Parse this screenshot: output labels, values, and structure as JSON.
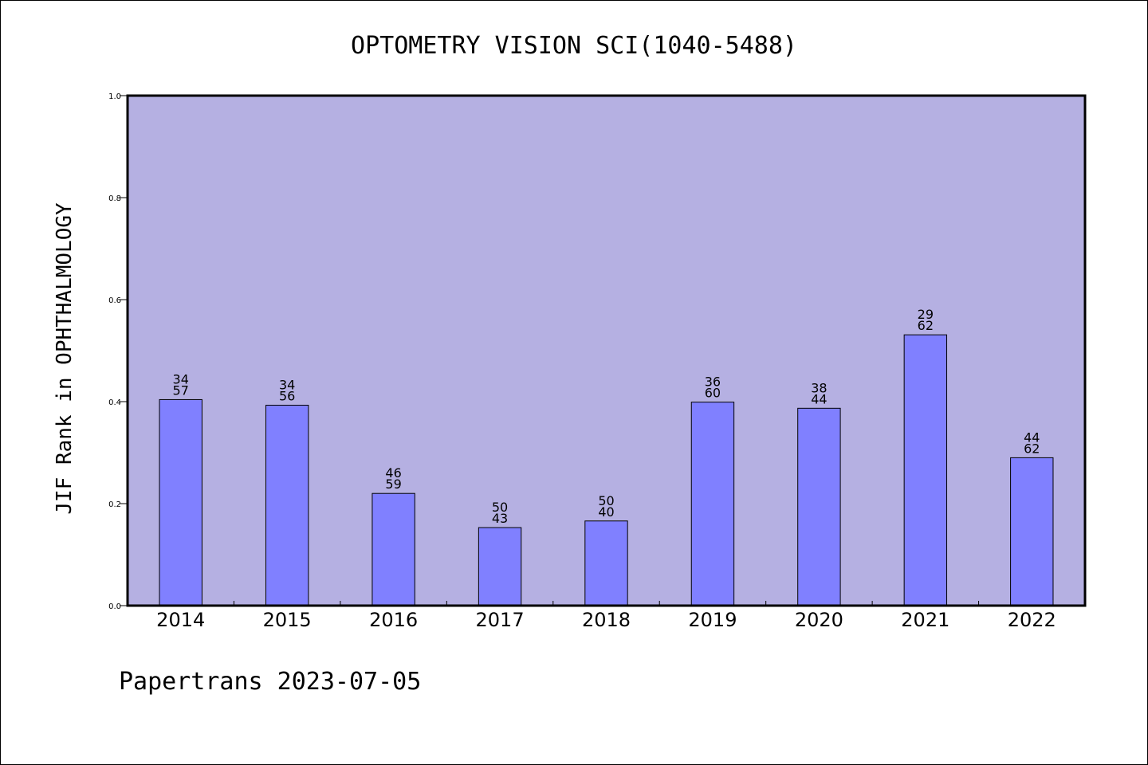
{
  "chart_data": {
    "type": "bar",
    "title": "OPTOMETRY VISION SCI(1040-5488)",
    "ylabel": "JIF Rank in OPHTHALMOLOGY",
    "xlabel": "",
    "categories": [
      "2014",
      "2015",
      "2016",
      "2017",
      "2018",
      "2019",
      "2020",
      "2021",
      "2022"
    ],
    "values": [
      0.404,
      0.393,
      0.22,
      0.153,
      0.166,
      0.399,
      0.387,
      0.531,
      0.29
    ],
    "bar_labels": [
      {
        "top": "34",
        "bottom": "57"
      },
      {
        "top": "34",
        "bottom": "56"
      },
      {
        "top": "46",
        "bottom": "59"
      },
      {
        "top": "50",
        "bottom": "43"
      },
      {
        "top": "50",
        "bottom": "40"
      },
      {
        "top": "36",
        "bottom": "60"
      },
      {
        "top": "38",
        "bottom": "44"
      },
      {
        "top": "29",
        "bottom": "62"
      },
      {
        "top": "44",
        "bottom": "62"
      }
    ],
    "ylim": [
      0.0,
      1.0
    ],
    "yticks": [
      "0.0",
      "0.2",
      "0.4",
      "0.6",
      "0.8",
      "1.0"
    ],
    "grid": false,
    "legend": "none",
    "colors": {
      "plot_background": "#b5b0e2",
      "bar_fill": "#8080ff",
      "bar_stroke": "#000000",
      "frame": "#000000"
    }
  },
  "footer": {
    "text": "Papertrans 2023-07-05"
  }
}
